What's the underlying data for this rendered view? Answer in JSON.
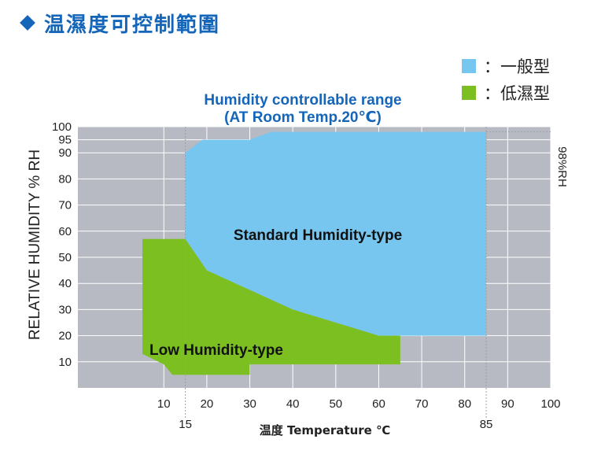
{
  "title": "温濕度可控制範圍",
  "colors": {
    "accent": "#1565b8",
    "standard": "#76c6ef",
    "low": "#7cbf21",
    "plot_bg": "#b7bac2",
    "grid": "#ffffff"
  },
  "legend": [
    {
      "label": "：一般型",
      "color": "#76c6ef"
    },
    {
      "label": "：低濕型",
      "color": "#7cbf21"
    }
  ],
  "chart_data": {
    "type": "area",
    "title": "Humidity controllable range",
    "subtitle": "(AT Room Temp.20℃)",
    "xlabel": "温度 Temperature ℃",
    "ylabel": "RELATIVE HUMIDITY % RH",
    "right_label": "98%RH",
    "xlim": [
      -10,
      100
    ],
    "ylim": [
      0,
      100
    ],
    "x_ticks": [
      10,
      20,
      30,
      40,
      50,
      60,
      70,
      80,
      90,
      100
    ],
    "x_ticks_extra": [
      15,
      85
    ],
    "y_ticks": [
      10,
      20,
      30,
      40,
      50,
      60,
      70,
      80,
      90,
      95,
      100
    ],
    "grid": true,
    "series": [
      {
        "name": "Standard Humidity-type",
        "color": "#76c6ef",
        "points": [
          [
            15,
            57
          ],
          [
            15,
            90
          ],
          [
            19,
            95
          ],
          [
            30,
            95
          ],
          [
            35,
            98
          ],
          [
            85,
            98
          ],
          [
            85,
            20
          ],
          [
            60,
            20
          ],
          [
            40,
            30
          ],
          [
            20,
            45
          ]
        ]
      },
      {
        "name": "Low Humidity-type",
        "color": "#7cbf21",
        "points": [
          [
            5,
            57
          ],
          [
            15,
            57
          ],
          [
            20,
            45
          ],
          [
            40,
            30
          ],
          [
            60,
            20
          ],
          [
            65,
            20
          ],
          [
            65,
            9
          ],
          [
            30,
            9
          ],
          [
            30,
            5
          ],
          [
            12,
            5
          ],
          [
            10,
            9
          ],
          [
            5,
            13
          ]
        ]
      }
    ]
  }
}
